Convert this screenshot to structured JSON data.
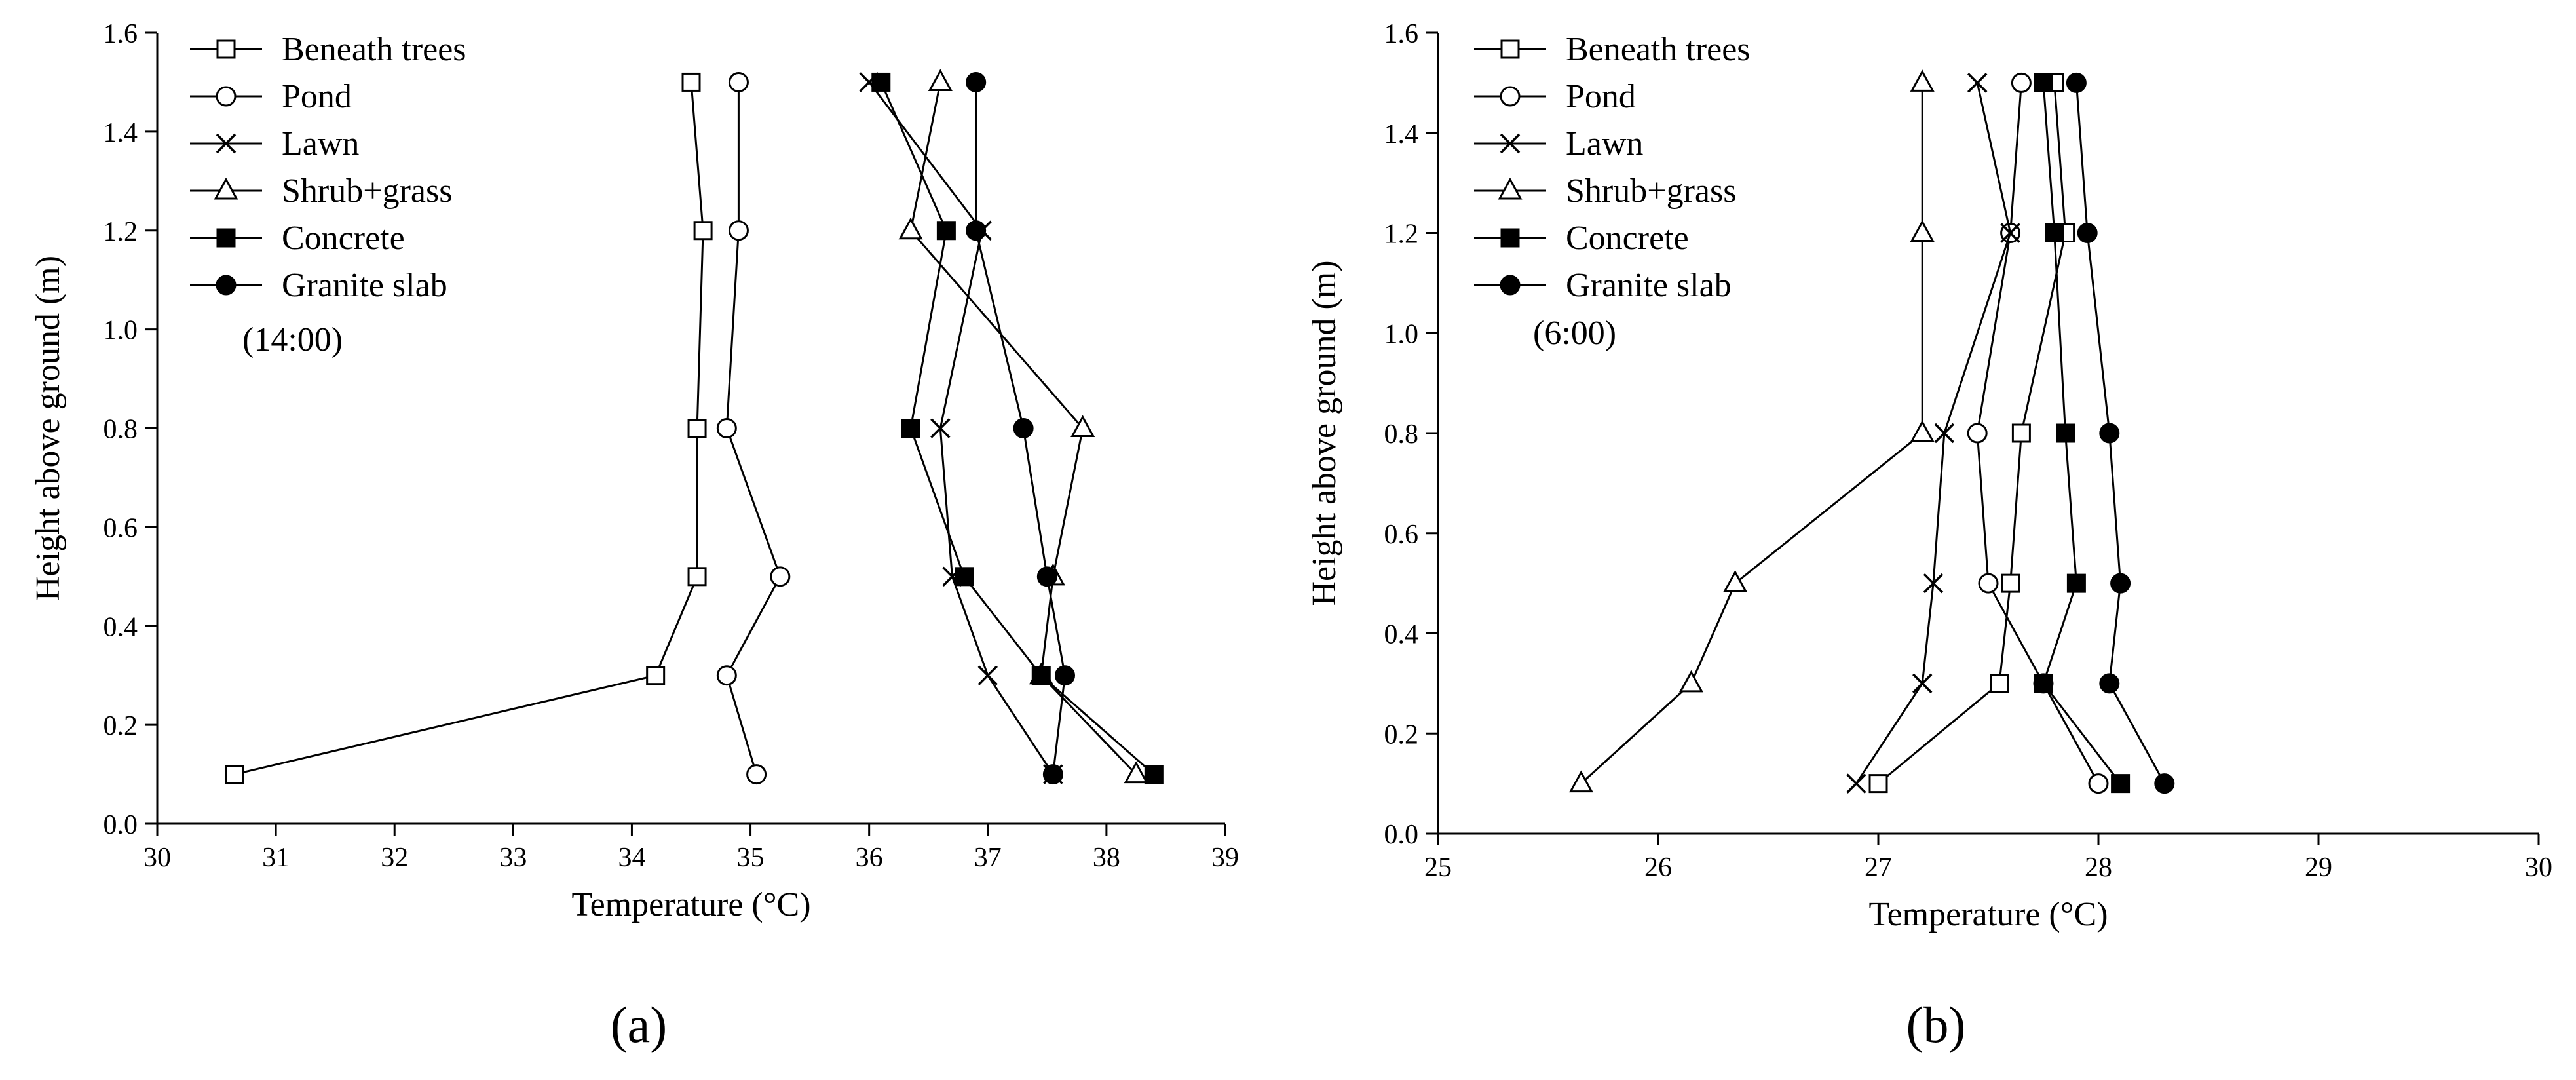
{
  "chart_data": [
    {
      "type": "line",
      "panel_label": "(a)",
      "annotation": "(14:00)",
      "xlabel": "Temperature (°C)",
      "ylabel": "Height above ground (m)",
      "xlim": [
        30,
        39
      ],
      "ylim": [
        0.0,
        1.6
      ],
      "x_ticks": [
        "30",
        "31",
        "32",
        "33",
        "34",
        "35",
        "36",
        "37",
        "38",
        "39"
      ],
      "y_ticks": [
        "0.0",
        "0.2",
        "0.4",
        "0.6",
        "0.8",
        "1.0",
        "1.2",
        "1.4",
        "1.6"
      ],
      "grid": false,
      "legend_position": "top-left",
      "series": [
        {
          "name": "Beneath trees",
          "marker": "open-square",
          "points": [
            [
              30.65,
              0.1
            ],
            [
              34.2,
              0.3
            ],
            [
              34.55,
              0.5
            ],
            [
              34.55,
              0.8
            ],
            [
              34.6,
              1.2
            ],
            [
              34.5,
              1.5
            ]
          ]
        },
        {
          "name": "Pond",
          "marker": "open-circle",
          "points": [
            [
              35.05,
              0.1
            ],
            [
              34.8,
              0.3
            ],
            [
              35.25,
              0.5
            ],
            [
              34.8,
              0.8
            ],
            [
              34.9,
              1.2
            ],
            [
              34.9,
              1.5
            ]
          ]
        },
        {
          "name": "Lawn",
          "marker": "x",
          "points": [
            [
              37.55,
              0.1
            ],
            [
              37.0,
              0.3
            ],
            [
              36.7,
              0.5
            ],
            [
              36.6,
              0.8
            ],
            [
              36.95,
              1.2
            ],
            [
              36.0,
              1.5
            ]
          ]
        },
        {
          "name": "Shrub+grass",
          "marker": "open-triangle",
          "points": [
            [
              38.25,
              0.1
            ],
            [
              37.45,
              0.3
            ],
            [
              37.55,
              0.5
            ],
            [
              37.8,
              0.8
            ],
            [
              36.35,
              1.2
            ],
            [
              36.6,
              1.5
            ]
          ]
        },
        {
          "name": "Concrete",
          "marker": "filled-square",
          "points": [
            [
              38.4,
              0.1
            ],
            [
              37.45,
              0.3
            ],
            [
              36.8,
              0.5
            ],
            [
              36.35,
              0.8
            ],
            [
              36.65,
              1.2
            ],
            [
              36.1,
              1.5
            ]
          ]
        },
        {
          "name": "Granite slab",
          "marker": "filled-circle",
          "points": [
            [
              37.55,
              0.1
            ],
            [
              37.65,
              0.3
            ],
            [
              37.5,
              0.5
            ],
            [
              37.3,
              0.8
            ],
            [
              36.9,
              1.2
            ],
            [
              36.9,
              1.5
            ]
          ]
        }
      ]
    },
    {
      "type": "line",
      "panel_label": "(b)",
      "annotation": "(6:00)",
      "xlabel": "Temperature (°C)",
      "ylabel": "Height above ground (m)",
      "xlim": [
        25,
        30
      ],
      "ylim": [
        0.0,
        1.6
      ],
      "x_ticks": [
        "25",
        "26",
        "27",
        "28",
        "29",
        "30"
      ],
      "y_ticks": [
        "0.0",
        "0.2",
        "0.4",
        "0.6",
        "0.8",
        "1.0",
        "1.2",
        "1.4",
        "1.6"
      ],
      "grid": false,
      "legend_position": "top-left",
      "series": [
        {
          "name": "Beneath trees",
          "marker": "open-square",
          "points": [
            [
              27.0,
              0.1
            ],
            [
              27.55,
              0.3
            ],
            [
              27.6,
              0.5
            ],
            [
              27.65,
              0.8
            ],
            [
              27.85,
              1.2
            ],
            [
              27.8,
              1.5
            ]
          ]
        },
        {
          "name": "Pond",
          "marker": "open-circle",
          "points": [
            [
              28.0,
              0.1
            ],
            [
              27.75,
              0.3
            ],
            [
              27.5,
              0.5
            ],
            [
              27.45,
              0.8
            ],
            [
              27.6,
              1.2
            ],
            [
              27.65,
              1.5
            ]
          ]
        },
        {
          "name": "Lawn",
          "marker": "x",
          "points": [
            [
              26.9,
              0.1
            ],
            [
              27.2,
              0.3
            ],
            [
              27.25,
              0.5
            ],
            [
              27.3,
              0.8
            ],
            [
              27.6,
              1.2
            ],
            [
              27.45,
              1.5
            ]
          ]
        },
        {
          "name": "Shrub+grass",
          "marker": "open-triangle",
          "points": [
            [
              25.65,
              0.1
            ],
            [
              26.15,
              0.3
            ],
            [
              26.35,
              0.5
            ],
            [
              27.2,
              0.8
            ],
            [
              27.2,
              1.2
            ],
            [
              27.2,
              1.5
            ]
          ]
        },
        {
          "name": "Concrete",
          "marker": "filled-square",
          "points": [
            [
              28.1,
              0.1
            ],
            [
              27.75,
              0.3
            ],
            [
              27.9,
              0.5
            ],
            [
              27.85,
              0.8
            ],
            [
              27.8,
              1.2
            ],
            [
              27.75,
              1.5
            ]
          ]
        },
        {
          "name": "Granite slab",
          "marker": "filled-circle",
          "points": [
            [
              28.3,
              0.1
            ],
            [
              28.05,
              0.3
            ],
            [
              28.1,
              0.5
            ],
            [
              28.05,
              0.8
            ],
            [
              27.95,
              1.2
            ],
            [
              27.9,
              1.5
            ]
          ]
        }
      ]
    }
  ]
}
